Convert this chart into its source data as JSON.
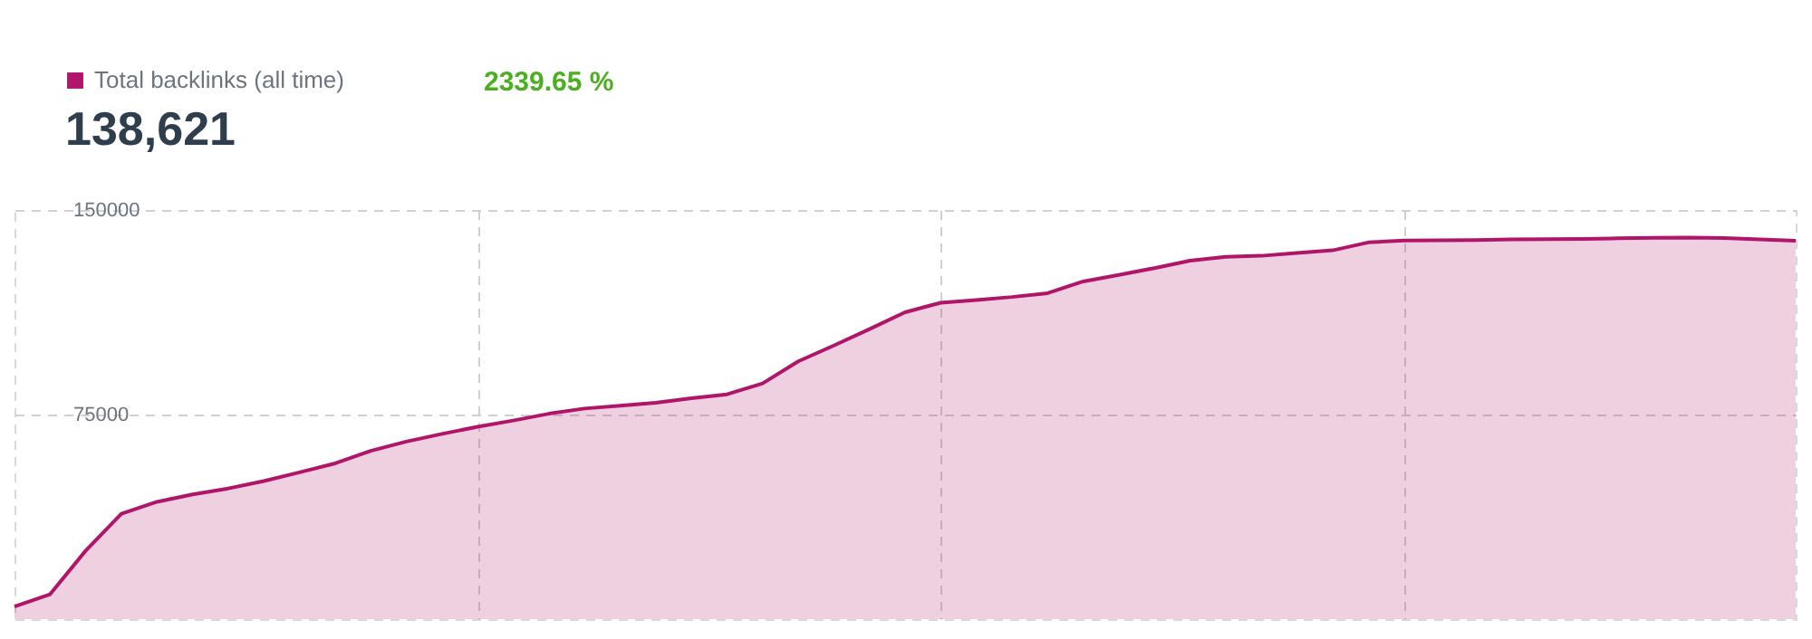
{
  "chart_data": {
    "type": "area",
    "categories": [
      null,
      null,
      null,
      null,
      null,
      null,
      null,
      null,
      null,
      null,
      null,
      null,
      null,
      null,
      null,
      null,
      null,
      null,
      null,
      null,
      null,
      null,
      null,
      null,
      null,
      null,
      null,
      null,
      null,
      null,
      null,
      null,
      null,
      null,
      null,
      null,
      null,
      null,
      null,
      null,
      null,
      null,
      null,
      null,
      null,
      null,
      null,
      null,
      null,
      null,
      null
    ],
    "series": [
      {
        "name": "Total backlinks (all time)",
        "color": "#b0156a",
        "values": [
          4600,
          9100,
          25100,
          38600,
          43000,
          45700,
          47900,
          50600,
          53800,
          57100,
          61700,
          65100,
          67900,
          70500,
          72800,
          75300,
          77200,
          78200,
          79300,
          81000,
          82400,
          86400,
          94500,
          100300,
          106300,
          112500,
          116000,
          117000,
          118100,
          119500,
          123800,
          126200,
          128700,
          131400,
          132800,
          133200,
          134200,
          135200,
          138100,
          138800,
          138900,
          139000,
          139200,
          139300,
          139400,
          139600,
          139800,
          139900,
          139700,
          139200,
          138700
        ]
      }
    ],
    "ylim": [
      0,
      150000
    ],
    "yticks": [
      75000,
      150000
    ],
    "tick_labels": "y",
    "grid": true,
    "legend": "top left",
    "annotations": [
      "138,621",
      "2339.65 %"
    ]
  }
}
